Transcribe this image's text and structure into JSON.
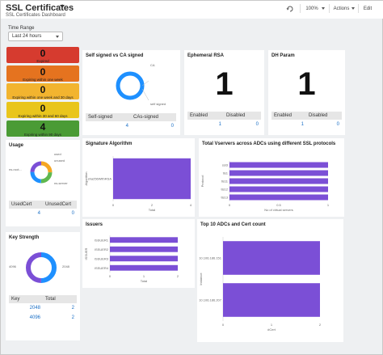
{
  "header": {
    "title": "SSL Certificates",
    "subtitle": "SSL Certificates Dashboard",
    "zoom": "100%",
    "actions_label": "Actions",
    "edit_label": "Edit"
  },
  "time_range": {
    "label": "Time Range",
    "value": "Last 24 hours"
  },
  "expiry": [
    {
      "value": "0",
      "label": "Expired",
      "color": "#d63b2f"
    },
    {
      "value": "0",
      "label": "Expiring within one week",
      "color": "#e5731f"
    },
    {
      "value": "0",
      "label": "Expiring within one week and 30 days",
      "color": "#f2b42f"
    },
    {
      "value": "0",
      "label": "Expiring within 30 and 60 days",
      "color": "#e9c51c"
    },
    {
      "value": "4",
      "label": "Expiring within 90 days",
      "color": "#4a9b35"
    }
  ],
  "self_signed": {
    "title": "Self signed vs CA signed",
    "legend_ca": "CA",
    "legend_self": "self signed",
    "col1": "Self-signed",
    "col2": "CAs-signed",
    "val1": "4",
    "val2": "0"
  },
  "ephemeral_rsa": {
    "title": "Ephemeral RSA",
    "big": "1",
    "col1": "Enabled",
    "col2": "Disabled",
    "val1": "1",
    "val2": "0"
  },
  "dh_param": {
    "title": "DH Param",
    "big": "1",
    "col1": "Enabled",
    "col2": "Disabled",
    "val1": "1",
    "val2": "0"
  },
  "usage": {
    "title": "Usage",
    "col1": "UsedCert",
    "col2": "UnusedCert",
    "val1": "4",
    "val2": "0",
    "legend": [
      "used",
      "unused",
      "ns-root...",
      "ns-server"
    ]
  },
  "key_strength": {
    "title": "Key Strength",
    "legend": [
      "2048",
      "4096"
    ],
    "col1": "Key",
    "col2": "Total",
    "rows": [
      {
        "key": "2048",
        "total": "2"
      },
      {
        "key": "4096",
        "total": "2"
      }
    ]
  },
  "chart_data": [
    {
      "type": "bar",
      "title": "Signature Algorithm",
      "orientation": "horizontal",
      "categories": [
        "sha256WithRSA"
      ],
      "values": [
        4
      ],
      "xlabel": "Total",
      "ylabel": "Algorithm",
      "color": "#7b4fd6"
    },
    {
      "type": "bar",
      "title": "Total Vservers across ADCs using different SSL protocols",
      "orientation": "horizontal",
      "categories": [
        "ssl3",
        "tls1",
        "tls11",
        "tls12",
        "tls13"
      ],
      "values": [
        1,
        1,
        1,
        1,
        1
      ],
      "xlabel": "No of virtual servers",
      "ylabel": "Protocol",
      "xlim": [
        0,
        1
      ],
      "color": "#7b4fd6"
    },
    {
      "type": "bar",
      "title": "Issuers",
      "orientation": "horizontal",
      "categories": [
        "ISSUER1",
        "ISSUER2",
        "ISSUER3",
        "ISSUER4"
      ],
      "values": [
        2,
        2,
        2,
        2
      ],
      "xlabel": "Total",
      "ylabel": "ISSUER",
      "color": "#7b4fd6"
    },
    {
      "type": "bar",
      "title": "Top 10 ADCs and Cert count",
      "orientation": "horizontal",
      "categories": [
        "10.106.186.151",
        "10.106.186.207"
      ],
      "values": [
        2,
        2
      ],
      "xlabel": "#Cert",
      "ylabel": "Instance",
      "xlim": [
        0,
        2
      ],
      "color": "#7b4fd6"
    }
  ],
  "colors": {
    "accent": "#7b4fd6",
    "donut_blue": "#1e90ff",
    "donut_orange": "#f5a623",
    "donut_green": "#5fb84f",
    "link": "#1a6fc6"
  }
}
